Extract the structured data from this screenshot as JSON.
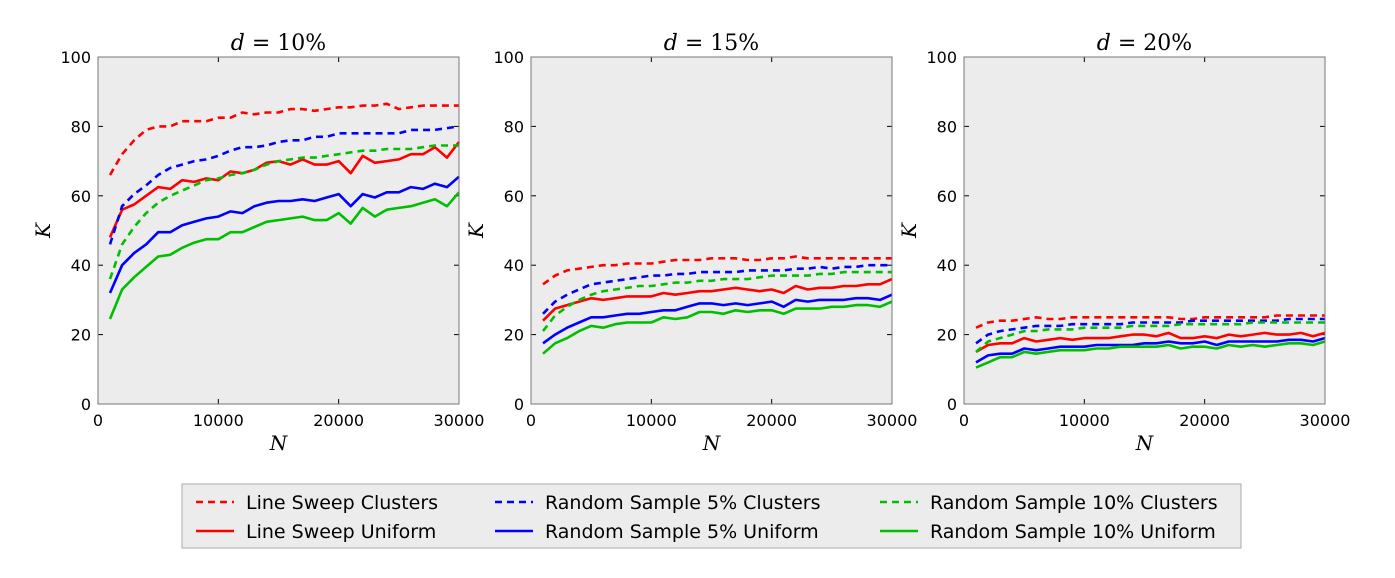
{
  "chart_data": [
    {
      "type": "line",
      "title": "d = 10%",
      "title_var": "d",
      "title_rest": " = 10%",
      "xlabel": "N",
      "ylabel": "K",
      "xlim": [
        0,
        30000
      ],
      "ylim": [
        0,
        100
      ],
      "xticks": [
        0,
        10000,
        20000,
        30000
      ],
      "yticks": [
        0,
        20,
        40,
        60,
        80,
        100
      ],
      "grid": false,
      "x": [
        1000,
        2000,
        3000,
        4000,
        5000,
        6000,
        7000,
        8000,
        9000,
        10000,
        11000,
        12000,
        13000,
        14000,
        15000,
        16000,
        17000,
        18000,
        19000,
        20000,
        21000,
        22000,
        23000,
        24000,
        25000,
        26000,
        27000,
        28000,
        29000,
        30000
      ],
      "series": [
        {
          "name": "Line Sweep Clusters",
          "color": "#ff0000",
          "dashed": true,
          "values": [
            66,
            72,
            76,
            79,
            80,
            80,
            81.5,
            81.5,
            81.5,
            82.5,
            82.5,
            84,
            83.5,
            84,
            84,
            85,
            85,
            84.5,
            85,
            85.5,
            85.5,
            86,
            86,
            86.5,
            85,
            85.5,
            86,
            86,
            86,
            86
          ]
        },
        {
          "name": "Line Sweep Uniform",
          "color": "#ff0000",
          "dashed": false,
          "values": [
            48,
            56,
            57.5,
            60,
            62.5,
            62,
            64.5,
            64,
            65,
            64.5,
            67,
            66.5,
            67.5,
            69.5,
            70,
            69,
            70.5,
            69,
            69,
            70,
            66.5,
            71.5,
            69.5,
            70,
            70.5,
            72,
            72,
            74,
            71,
            75.5
          ]
        },
        {
          "name": "Random Sample 5% Clusters",
          "color": "#0000ff",
          "dashed": true,
          "values": [
            46,
            57,
            60.5,
            63,
            66,
            68,
            69,
            70,
            70.5,
            71.5,
            73,
            74,
            74,
            74.5,
            75.5,
            76,
            76,
            77,
            77,
            78,
            78,
            78,
            78,
            78,
            78,
            79,
            79,
            79,
            79.5,
            80
          ]
        },
        {
          "name": "Random Sample 5% Uniform",
          "color": "#0000ff",
          "dashed": false,
          "values": [
            32,
            40,
            43.5,
            46,
            49.5,
            49.5,
            51.5,
            52.5,
            53.5,
            54,
            55.5,
            55,
            57,
            58,
            58.5,
            58.5,
            59,
            58.5,
            59.5,
            60.5,
            57,
            60.5,
            59.5,
            61,
            61,
            62.5,
            62,
            63.5,
            62.5,
            65.5
          ]
        },
        {
          "name": "Random Sample 10% Clusters",
          "color": "#00bf00",
          "dashed": true,
          "values": [
            36,
            46,
            51,
            55,
            58,
            60,
            61.5,
            63,
            64.5,
            65,
            66,
            66.5,
            67.5,
            69,
            70,
            70.5,
            71,
            71,
            71.5,
            72,
            72.5,
            73,
            73,
            73.5,
            73.5,
            73.5,
            74,
            74.5,
            74.5,
            74.5
          ]
        },
        {
          "name": "Random Sample 10% Uniform",
          "color": "#00bf00",
          "dashed": false,
          "values": [
            24.5,
            33,
            36.5,
            39.5,
            42.5,
            43,
            45,
            46.5,
            47.5,
            47.5,
            49.5,
            49.5,
            51,
            52.5,
            53,
            53.5,
            54,
            53,
            53,
            55,
            52,
            56.5,
            54,
            56,
            56.5,
            57,
            58,
            59,
            57,
            61
          ]
        }
      ]
    },
    {
      "type": "line",
      "title": "d = 15%",
      "title_var": "d",
      "title_rest": " = 15%",
      "xlabel": "N",
      "ylabel": "K",
      "xlim": [
        0,
        30000
      ],
      "ylim": [
        0,
        100
      ],
      "xticks": [
        0,
        10000,
        20000,
        30000
      ],
      "yticks": [
        0,
        20,
        40,
        60,
        80,
        100
      ],
      "grid": false,
      "x": [
        1000,
        2000,
        3000,
        4000,
        5000,
        6000,
        7000,
        8000,
        9000,
        10000,
        11000,
        12000,
        13000,
        14000,
        15000,
        16000,
        17000,
        18000,
        19000,
        20000,
        21000,
        22000,
        23000,
        24000,
        25000,
        26000,
        27000,
        28000,
        29000,
        30000
      ],
      "series": [
        {
          "name": "Line Sweep Clusters",
          "color": "#ff0000",
          "dashed": true,
          "values": [
            34.5,
            37,
            38.5,
            39,
            39.5,
            40,
            40,
            40.5,
            40.5,
            40.5,
            41,
            41.5,
            41.5,
            41.5,
            42,
            42,
            42,
            41.5,
            41.5,
            42,
            42,
            42.5,
            42,
            42,
            42,
            42,
            42,
            42,
            42,
            42
          ]
        },
        {
          "name": "Line Sweep Uniform",
          "color": "#ff0000",
          "dashed": false,
          "values": [
            24,
            27.5,
            28.5,
            29.5,
            30.5,
            30,
            30.5,
            31,
            31,
            31,
            32,
            31.5,
            32,
            32.5,
            32.5,
            33,
            33.5,
            33,
            32.5,
            33,
            32,
            34,
            33,
            33.5,
            33.5,
            34,
            34,
            34.5,
            34.5,
            36
          ]
        },
        {
          "name": "Random Sample 5% Clusters",
          "color": "#0000ff",
          "dashed": true,
          "values": [
            26,
            29.5,
            31.5,
            33,
            34.5,
            35,
            35.5,
            36,
            36.5,
            37,
            37,
            37.5,
            37.5,
            38,
            38,
            38,
            38,
            38.5,
            38.5,
            38.5,
            38.5,
            39,
            39,
            39.5,
            39,
            39.5,
            39.5,
            40,
            40,
            40
          ]
        },
        {
          "name": "Random Sample 5% Uniform",
          "color": "#0000ff",
          "dashed": false,
          "values": [
            17.5,
            20,
            22,
            23.5,
            25,
            25,
            25.5,
            26,
            26,
            26.5,
            27,
            27,
            28,
            29,
            29,
            28.5,
            29,
            28.5,
            29,
            29.5,
            28,
            30,
            29.5,
            30,
            30,
            30,
            30.5,
            30.5,
            30,
            31.5
          ]
        },
        {
          "name": "Random Sample 10% Clusters",
          "color": "#00bf00",
          "dashed": true,
          "values": [
            21,
            25.5,
            28,
            30,
            31.5,
            32.5,
            33,
            33.5,
            34,
            34,
            34.5,
            35,
            35,
            35.5,
            35.5,
            36,
            36,
            36,
            36.5,
            37,
            37,
            37,
            37,
            37.5,
            37.5,
            38,
            38,
            38,
            38,
            38
          ]
        },
        {
          "name": "Random Sample 10% Uniform",
          "color": "#00bf00",
          "dashed": false,
          "values": [
            14.5,
            17.5,
            19,
            21,
            22.5,
            22,
            23,
            23.5,
            23.5,
            23.5,
            25,
            24.5,
            25,
            26.5,
            26.5,
            26,
            27,
            26.5,
            27,
            27,
            26,
            27.5,
            27.5,
            27.5,
            28,
            28,
            28.5,
            28.5,
            28,
            29.5
          ]
        }
      ]
    },
    {
      "type": "line",
      "title": "d = 20%",
      "title_var": "d",
      "title_rest": " = 20%",
      "xlabel": "N",
      "ylabel": "K",
      "xlim": [
        0,
        30000
      ],
      "ylim": [
        0,
        100
      ],
      "xticks": [
        0,
        10000,
        20000,
        30000
      ],
      "yticks": [
        0,
        20,
        40,
        60,
        80,
        100
      ],
      "grid": false,
      "x": [
        1000,
        2000,
        3000,
        4000,
        5000,
        6000,
        7000,
        8000,
        9000,
        10000,
        11000,
        12000,
        13000,
        14000,
        15000,
        16000,
        17000,
        18000,
        19000,
        20000,
        21000,
        22000,
        23000,
        24000,
        25000,
        26000,
        27000,
        28000,
        29000,
        30000
      ],
      "series": [
        {
          "name": "Line Sweep Clusters",
          "color": "#ff0000",
          "dashed": true,
          "values": [
            22,
            23.5,
            24,
            24,
            24.5,
            25,
            24.5,
            24.5,
            25,
            25,
            25,
            25,
            25,
            25,
            25,
            25,
            25,
            24.5,
            24.5,
            25,
            25,
            25,
            25,
            25,
            25,
            25.5,
            25.5,
            25.5,
            25.5,
            25.5
          ]
        },
        {
          "name": "Line Sweep Uniform",
          "color": "#ff0000",
          "dashed": false,
          "values": [
            15,
            17,
            17.5,
            17.5,
            19,
            18,
            18.5,
            19,
            18.5,
            19,
            19,
            19,
            19.5,
            20,
            20,
            19.5,
            20.5,
            19,
            19,
            19.5,
            19,
            20,
            19.5,
            20,
            20.5,
            20,
            20,
            20.5,
            19.5,
            20.5
          ]
        },
        {
          "name": "Random Sample 5% Clusters",
          "color": "#0000ff",
          "dashed": true,
          "values": [
            17.5,
            20,
            21,
            21.5,
            22,
            22.5,
            22.5,
            22.5,
            23,
            23,
            23,
            23,
            23,
            23.5,
            23.5,
            23.5,
            23.5,
            23.5,
            24,
            24,
            24,
            24,
            24,
            24,
            24,
            24,
            24.5,
            24.5,
            24.5,
            24.5
          ]
        },
        {
          "name": "Random Sample 5% Uniform",
          "color": "#0000ff",
          "dashed": false,
          "values": [
            12,
            14,
            14.5,
            14.5,
            16,
            15.5,
            16,
            16.5,
            16.5,
            16.5,
            17,
            17,
            17,
            17,
            17.5,
            17.5,
            18,
            17.5,
            17.5,
            18,
            17,
            18,
            18,
            18,
            18,
            18,
            18.5,
            18.5,
            18,
            19
          ]
        },
        {
          "name": "Random Sample 10% Clusters",
          "color": "#00bf00",
          "dashed": true,
          "values": [
            15,
            18,
            19,
            20,
            21,
            21,
            21.5,
            21.5,
            21.5,
            22,
            22,
            22,
            22,
            22.5,
            22.5,
            22.5,
            22.5,
            23,
            23,
            23,
            23,
            23,
            23,
            23.5,
            23.5,
            23.5,
            23.5,
            23.5,
            23.5,
            23.5
          ]
        },
        {
          "name": "Random Sample 10% Uniform",
          "color": "#00bf00",
          "dashed": false,
          "values": [
            10.5,
            12,
            13.5,
            13.5,
            15,
            14.5,
            15,
            15.5,
            15.5,
            15.5,
            16,
            16,
            16.5,
            16.5,
            16.5,
            16.5,
            17,
            16,
            16.5,
            16.5,
            16,
            17,
            16.5,
            17,
            16.5,
            17,
            17.5,
            17.5,
            17,
            18
          ]
        }
      ]
    }
  ],
  "legend": {
    "placement": "bottom-center",
    "entries": [
      {
        "name": "Line Sweep Clusters",
        "color": "#ff0000",
        "dashed": true
      },
      {
        "name": "Line Sweep Uniform",
        "color": "#ff0000",
        "dashed": false
      },
      {
        "name": "Random Sample 5% Clusters",
        "color": "#0000ff",
        "dashed": true
      },
      {
        "name": "Random Sample 5% Uniform",
        "color": "#0000ff",
        "dashed": false
      },
      {
        "name": "Random Sample 10% Clusters",
        "color": "#00bf00",
        "dashed": true
      },
      {
        "name": "Random Sample 10% Uniform",
        "color": "#00bf00",
        "dashed": false
      }
    ]
  },
  "colors": {
    "plot_background": "#ececec",
    "axes_edge": "#777777"
  }
}
